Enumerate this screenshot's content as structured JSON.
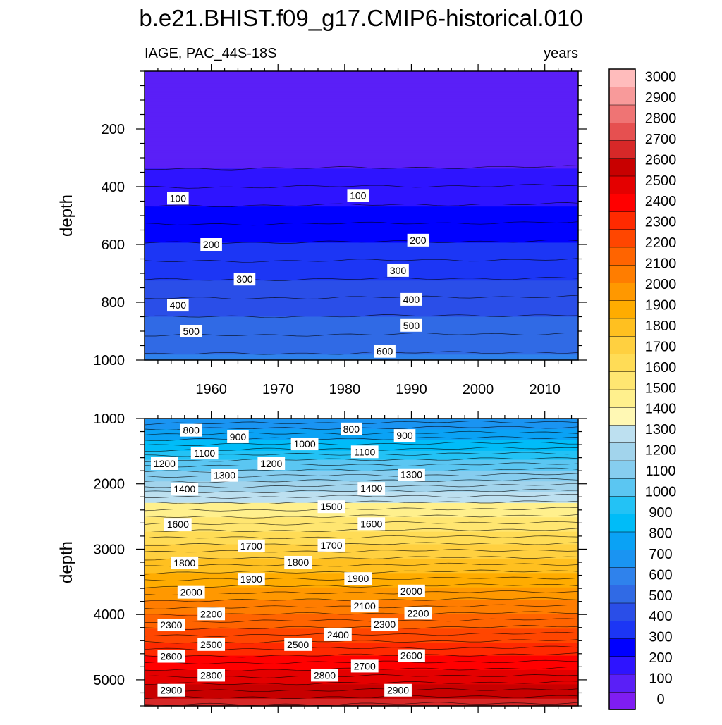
{
  "title": "b.e21.BHIST.f09_g17.CMIP6-historical.010",
  "chart_data": {
    "type": "heatmap",
    "variable_label": "IAGE, PAC_44S-18S",
    "units_label": "years",
    "x_ticks": [
      "1960",
      "1970",
      "1980",
      "1990",
      "2000",
      "2010"
    ],
    "x_tick_values": [
      1960,
      1970,
      1980,
      1990,
      2000,
      2010
    ],
    "xlim": [
      1950,
      2015
    ],
    "ylabel": "depth",
    "colorbar_labels": [
      "0",
      "100",
      "200",
      "300",
      "400",
      "500",
      "600",
      "700",
      "800",
      "900",
      "1000",
      "1100",
      "1200",
      "1300",
      "1400",
      "1500",
      "1600",
      "1700",
      "1800",
      "1900",
      "2000",
      "2100",
      "2200",
      "2300",
      "2400",
      "2500",
      "2600",
      "2700",
      "2800",
      "2900",
      "3000"
    ],
    "colorbar_colors": [
      "#7f1df2",
      "#5a1ff7",
      "#2e14ff",
      "#0000ff",
      "#1c36f5",
      "#2a4ee8",
      "#306ae5",
      "#2f82ec",
      "#1a94f2",
      "#0aa2f5",
      "#00bcf8",
      "#23c2f5",
      "#5bc6f2",
      "#86cdef",
      "#a2d4ec",
      "#bde0f0",
      "#fff8b4",
      "#fff08d",
      "#ffe671",
      "#ffdc56",
      "#ffd040",
      "#ffc020",
      "#ffac00",
      "#ff9800",
      "#ff7d00",
      "#ff6400",
      "#ff4600",
      "#ff2a00",
      "#ff0000",
      "#e40000",
      "#c80000",
      "#d72828",
      "#e65050",
      "#ef7474",
      "#f89a9a",
      "#ffbcbc"
    ],
    "panels": [
      {
        "name": "upper",
        "ylabel": "depth",
        "yticks": [
          "200",
          "400",
          "600",
          "800",
          "1000"
        ],
        "ytick_values": [
          200,
          400,
          600,
          800,
          1000
        ],
        "ylim": [
          0,
          1000
        ],
        "x_tick_labels_shown": true,
        "contour_labels": [
          {
            "text": "100",
            "year": 1955,
            "depth": 440
          },
          {
            "text": "100",
            "year": 1982,
            "depth": 430
          },
          {
            "text": "200",
            "year": 1960,
            "depth": 600
          },
          {
            "text": "200",
            "year": 1991,
            "depth": 585
          },
          {
            "text": "300",
            "year": 1965,
            "depth": 720
          },
          {
            "text": "300",
            "year": 1988,
            "depth": 690
          },
          {
            "text": "400",
            "year": 1955,
            "depth": 810
          },
          {
            "text": "400",
            "year": 1990,
            "depth": 790
          },
          {
            "text": "500",
            "year": 1957,
            "depth": 900
          },
          {
            "text": "500",
            "year": 1990,
            "depth": 880
          },
          {
            "text": "600",
            "year": 1986,
            "depth": 970
          }
        ]
      },
      {
        "name": "lower",
        "ylabel": "depth",
        "yticks": [
          "1000",
          "2000",
          "3000",
          "4000",
          "5000"
        ],
        "ytick_values": [
          1000,
          2000,
          3000,
          4000,
          5000
        ],
        "ylim": [
          1000,
          5400
        ],
        "x_tick_labels_shown": false,
        "contour_labels": [
          {
            "text": "800",
            "year": 1957,
            "depth": 1180
          },
          {
            "text": "800",
            "year": 1981,
            "depth": 1160
          },
          {
            "text": "900",
            "year": 1964,
            "depth": 1280
          },
          {
            "text": "900",
            "year": 1989,
            "depth": 1260
          },
          {
            "text": "1000",
            "year": 1974,
            "depth": 1390
          },
          {
            "text": "1100",
            "year": 1959,
            "depth": 1530
          },
          {
            "text": "1100",
            "year": 1983,
            "depth": 1510
          },
          {
            "text": "1200",
            "year": 1953,
            "depth": 1690
          },
          {
            "text": "1200",
            "year": 1969,
            "depth": 1690
          },
          {
            "text": "1300",
            "year": 1962,
            "depth": 1870
          },
          {
            "text": "1300",
            "year": 1990,
            "depth": 1860
          },
          {
            "text": "1400",
            "year": 1956,
            "depth": 2080
          },
          {
            "text": "1400",
            "year": 1984,
            "depth": 2070
          },
          {
            "text": "1500",
            "year": 1978,
            "depth": 2350
          },
          {
            "text": "1600",
            "year": 1955,
            "depth": 2620
          },
          {
            "text": "1600",
            "year": 1984,
            "depth": 2610
          },
          {
            "text": "1700",
            "year": 1966,
            "depth": 2950
          },
          {
            "text": "1700",
            "year": 1978,
            "depth": 2940
          },
          {
            "text": "1800",
            "year": 1956,
            "depth": 3210
          },
          {
            "text": "1800",
            "year": 1973,
            "depth": 3200
          },
          {
            "text": "1900",
            "year": 1966,
            "depth": 3460
          },
          {
            "text": "1900",
            "year": 1982,
            "depth": 3450
          },
          {
            "text": "2000",
            "year": 1957,
            "depth": 3660
          },
          {
            "text": "2000",
            "year": 1990,
            "depth": 3640
          },
          {
            "text": "2100",
            "year": 1983,
            "depth": 3870
          },
          {
            "text": "2200",
            "year": 1960,
            "depth": 3990
          },
          {
            "text": "2200",
            "year": 1991,
            "depth": 3980
          },
          {
            "text": "2300",
            "year": 1954,
            "depth": 4160
          },
          {
            "text": "2300",
            "year": 1986,
            "depth": 4150
          },
          {
            "text": "2400",
            "year": 1979,
            "depth": 4310
          },
          {
            "text": "2500",
            "year": 1960,
            "depth": 4460
          },
          {
            "text": "2500",
            "year": 1973,
            "depth": 4460
          },
          {
            "text": "2600",
            "year": 1954,
            "depth": 4640
          },
          {
            "text": "2600",
            "year": 1990,
            "depth": 4630
          },
          {
            "text": "2700",
            "year": 1983,
            "depth": 4790
          },
          {
            "text": "2800",
            "year": 1960,
            "depth": 4930
          },
          {
            "text": "2800",
            "year": 1977,
            "depth": 4930
          },
          {
            "text": "2900",
            "year": 1954,
            "depth": 5160
          },
          {
            "text": "2900",
            "year": 1988,
            "depth": 5160
          }
        ]
      }
    ]
  }
}
